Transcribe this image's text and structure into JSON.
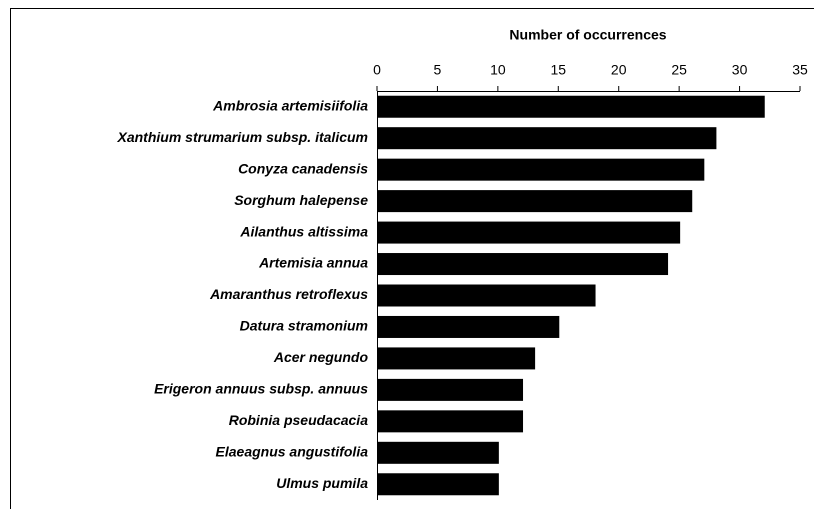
{
  "chart_data": {
    "type": "bar",
    "orientation": "horizontal",
    "x_label": "Number of occurrences",
    "categories": [
      "Ambrosia artemisiifolia",
      "Xanthium strumarium subsp. italicum",
      "Conyza canadensis",
      "Sorghum halepense",
      "Ailanthus altissima",
      "Artemisia annua",
      "Amaranthus retroflexus",
      "Datura stramonium",
      "Acer negundo",
      "Erigeron annuus subsp. annuus",
      "Robinia pseudacacia",
      "Elaeagnus angustifolia",
      "Ulmus pumila"
    ],
    "values": [
      32,
      28,
      27,
      26,
      25,
      24,
      18,
      15,
      13,
      12,
      12,
      10,
      10
    ],
    "color": "#000000",
    "xlim": [
      0,
      35
    ],
    "xticks": [
      0,
      5,
      10,
      15,
      20,
      25,
      30,
      35
    ],
    "grid": false
  }
}
